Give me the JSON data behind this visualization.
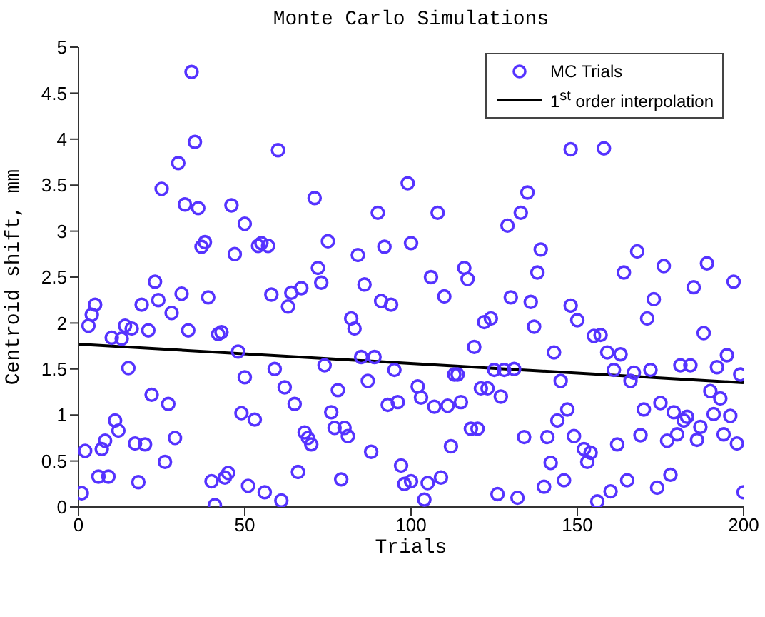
{
  "chart_data": {
    "type": "scatter",
    "title": "Monte Carlo Simulations",
    "xlabel": "Trials",
    "ylabel": "Centroid shift, mm",
    "xlim": [
      0,
      200
    ],
    "xticks": [
      0,
      50,
      100,
      150,
      200
    ],
    "ylim": [
      0,
      5
    ],
    "yticks": [
      0,
      0.5,
      1,
      1.5,
      2,
      2.5,
      3,
      3.5,
      4,
      4.5,
      5
    ],
    "legend": "top right",
    "series": [
      {
        "name": "MC Trials",
        "marker": "circle",
        "color": "#5533ff",
        "x": [
          1,
          2,
          3,
          4,
          5,
          6,
          7,
          8,
          9,
          10,
          11,
          12,
          13,
          14,
          15,
          16,
          17,
          18,
          19,
          20,
          21,
          22,
          23,
          24,
          25,
          26,
          27,
          28,
          29,
          30,
          31,
          32,
          33,
          34,
          35,
          36,
          37,
          38,
          39,
          40,
          41,
          42,
          43,
          44,
          45,
          46,
          47,
          48,
          49,
          50,
          51,
          50,
          53,
          54,
          55,
          57,
          56,
          58,
          59,
          60,
          61,
          62,
          63,
          64,
          65,
          66,
          67,
          68,
          69,
          70,
          71,
          72,
          73,
          74,
          75,
          76,
          77,
          78,
          79,
          80,
          81,
          82,
          83,
          84,
          85,
          86,
          87,
          88,
          89,
          90,
          91,
          92,
          93,
          94,
          95,
          96,
          97,
          98,
          99,
          100,
          100,
          102,
          103,
          104,
          105,
          106,
          107,
          108,
          109,
          110,
          111,
          112,
          113,
          114,
          115,
          116,
          117,
          118,
          119,
          120,
          121,
          122,
          123,
          124,
          125,
          126,
          127,
          128,
          129,
          130,
          131,
          132,
          133,
          134,
          135,
          136,
          137,
          138,
          139,
          140,
          141,
          142,
          143,
          144,
          145,
          146,
          147,
          148,
          148,
          149,
          150,
          158,
          152,
          153,
          154,
          155,
          157,
          156,
          159,
          160,
          161,
          162,
          163,
          164,
          165,
          166,
          167,
          168,
          169,
          170,
          171,
          172,
          173,
          174,
          175,
          176,
          177,
          178,
          179,
          180,
          181,
          182,
          183,
          184,
          185,
          186,
          187,
          188,
          189,
          190,
          191,
          192,
          193,
          194,
          195,
          196,
          197,
          198,
          199,
          200
        ],
        "values": [
          0.15,
          0.61,
          1.97,
          2.09,
          2.2,
          0.33,
          0.63,
          0.72,
          0.33,
          1.84,
          0.94,
          0.83,
          1.83,
          1.97,
          1.51,
          1.94,
          0.69,
          0.27,
          2.2,
          0.68,
          1.92,
          1.22,
          2.45,
          2.25,
          3.46,
          0.49,
          1.12,
          2.11,
          0.75,
          3.74,
          2.32,
          3.29,
          1.92,
          4.73,
          3.97,
          3.25,
          2.83,
          2.88,
          2.28,
          0.28,
          0.02,
          1.88,
          1.9,
          0.32,
          0.37,
          3.28,
          2.75,
          1.69,
          1.02,
          3.08,
          0.23,
          1.41,
          0.95,
          2.84,
          2.87,
          2.84,
          0.16,
          2.31,
          1.5,
          3.88,
          0.07,
          1.3,
          2.18,
          2.33,
          1.12,
          0.38,
          2.38,
          0.81,
          0.75,
          0.68,
          3.36,
          2.6,
          2.44,
          1.54,
          2.89,
          1.03,
          0.86,
          1.27,
          0.3,
          0.86,
          0.77,
          2.05,
          1.94,
          2.74,
          1.63,
          2.42,
          1.37,
          0.6,
          1.63,
          3.2,
          2.24,
          2.83,
          1.11,
          2.2,
          1.49,
          1.14,
          0.45,
          0.25,
          3.52,
          0.28,
          2.87,
          1.31,
          1.19,
          0.08,
          0.26,
          2.5,
          1.09,
          3.2,
          0.32,
          2.29,
          1.1,
          0.66,
          1.44,
          1.44,
          1.14,
          2.6,
          2.48,
          0.85,
          1.74,
          0.85,
          1.29,
          2.01,
          1.29,
          2.05,
          1.49,
          0.14,
          1.2,
          1.49,
          3.06,
          2.28,
          1.5,
          0.1,
          3.2,
          0.76,
          3.42,
          2.23,
          1.96,
          2.55,
          2.8,
          0.22,
          0.76,
          0.48,
          1.68,
          0.94,
          1.37,
          0.29,
          1.06,
          2.19,
          3.89,
          0.77,
          2.03,
          3.9,
          0.63,
          0.49,
          0.59,
          1.86,
          1.87,
          0.06,
          1.68,
          0.17,
          1.49,
          0.68,
          1.66,
          2.55,
          0.29,
          1.37,
          1.46,
          2.78,
          0.78,
          1.06,
          2.05,
          1.49,
          2.26,
          0.21,
          1.13,
          2.62,
          0.72,
          0.35,
          1.03,
          0.79,
          1.54,
          0.94,
          0.98,
          1.54,
          2.39,
          0.73,
          0.87,
          1.89,
          2.65,
          1.26,
          1.01,
          1.52,
          1.18,
          0.79,
          1.65,
          0.99,
          2.45,
          0.69,
          1.44,
          0.16
        ]
      },
      {
        "name": "1$^{st}$ order interpolation",
        "type": "line",
        "marker": "none",
        "color": "#000000",
        "x": [
          0,
          200
        ],
        "values": [
          1.77,
          1.35
        ]
      }
    ]
  }
}
